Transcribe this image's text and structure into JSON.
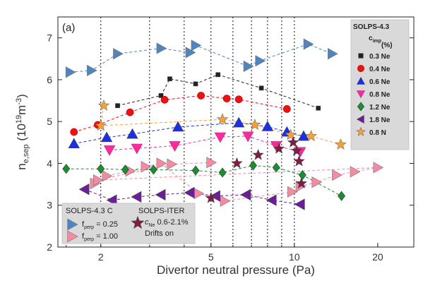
{
  "chart_data": {
    "type": "scatter",
    "panel_label": "(a)",
    "xlabel": "Divertor neutral pressure (Pa)",
    "ylabel_main": "n",
    "ylabel_sub": "e,sep",
    "ylabel_unit_pre": " (10",
    "ylabel_unit_exp": "19",
    "ylabel_unit_post": "m",
    "ylabel_unit_exp2": "-3",
    "ylabel_unit_end": ")",
    "x_scale": "log",
    "xlim": [
      1.4,
      27
    ],
    "ylim": [
      2,
      7.5
    ],
    "x_ticks": [
      2,
      5,
      10,
      20
    ],
    "x_tick_labels": [
      "2",
      "5",
      "10",
      "20"
    ],
    "y_ticks": [
      2,
      3,
      4,
      5,
      6,
      7
    ],
    "y_tick_labels": [
      "2",
      "3",
      "4",
      "5",
      "6",
      "7"
    ],
    "vertical_dotted_lines": [
      2,
      3,
      4,
      5,
      6,
      7,
      8,
      9,
      10
    ],
    "legend_top_right": {
      "title": "SOLPS-4.3",
      "subtitle_main": "c",
      "subtitle_sub": "imp",
      "subtitle_end": " (%)",
      "entries": [
        {
          "label": "0.3 Ne",
          "marker": "square",
          "color": "#222222"
        },
        {
          "label": "0.4 Ne",
          "marker": "circle",
          "color": "#ee1111"
        },
        {
          "label": "0.6 Ne",
          "marker": "triangle-up",
          "color": "#1a2fe6"
        },
        {
          "label": "0.8 Ne",
          "marker": "triangle-down",
          "color": "#ff2a9d"
        },
        {
          "label": "1.2 Ne",
          "marker": "diamond",
          "color": "#17902f"
        },
        {
          "label": "1.8 Ne",
          "marker": "triangle-left",
          "color": "#6a1f99"
        },
        {
          "label": "0.8 N",
          "marker": "star",
          "color": "#f7a036"
        }
      ]
    },
    "legend_bottom_left": {
      "title": "SOLPS-4.3 C",
      "entries": [
        {
          "main": "f",
          "sub": "perp",
          "rest": " = 0.25",
          "marker": "triangle-right",
          "color": "#4f84bf"
        },
        {
          "main": "f",
          "sub": "perp",
          "rest": " = 1.00",
          "marker": "triangle-right",
          "color": "#f58aa2"
        }
      ],
      "iter_title": "SOLPS-ITER",
      "iter_line2_main": "c",
      "iter_line2_sub": "Ne",
      "iter_line2_rest": " 0.6-2.1%",
      "iter_line3": "Drifts on",
      "iter_marker": "star",
      "iter_color": "#7b1f45"
    },
    "series": [
      {
        "id": "fperp025",
        "marker": "triangle-right",
        "color": "#4f84bf",
        "size": 9,
        "line": true,
        "points": [
          [
            1.55,
            6.18
          ],
          [
            1.85,
            6.22
          ],
          [
            2.3,
            6.62
          ],
          [
            3.3,
            6.75
          ],
          [
            4.2,
            6.65
          ],
          [
            4.4,
            6.82
          ],
          [
            6.8,
            6.32
          ],
          [
            7.5,
            6.45
          ],
          [
            11.2,
            6.85
          ],
          [
            13.7,
            6.62
          ]
        ]
      },
      {
        "id": "fperp100",
        "marker": "triangle-right",
        "color": "#f58aa2",
        "size": 9,
        "line": true,
        "points": [
          [
            1.9,
            3.52
          ],
          [
            2.1,
            3.7
          ],
          [
            2.55,
            3.82
          ],
          [
            2.9,
            3.92
          ],
          [
            3.3,
            4.0
          ],
          [
            4.5,
            3.28
          ],
          [
            5.6,
            3.1
          ],
          [
            9.8,
            3.32
          ],
          [
            10.5,
            3.45
          ],
          [
            12.0,
            3.55
          ],
          [
            14.2,
            3.72
          ],
          [
            16.5,
            3.8
          ],
          [
            20.0,
            3.9
          ],
          [
            1.95,
            3.6
          ],
          [
            3.6,
            3.98
          ],
          [
            5.0,
            4.02
          ]
        ]
      },
      {
        "id": "ne03",
        "marker": "square",
        "color": "#222222",
        "size": 6,
        "line": true,
        "points": [
          [
            2.3,
            5.38
          ],
          [
            3.3,
            5.62
          ],
          [
            3.55,
            6.02
          ],
          [
            4.4,
            5.9
          ],
          [
            5.3,
            6.12
          ],
          [
            7.6,
            5.8
          ],
          [
            12.2,
            5.32
          ]
        ]
      },
      {
        "id": "ne04",
        "marker": "circle",
        "color": "#ee1111",
        "size": 7,
        "line": true,
        "points": [
          [
            1.6,
            4.75
          ],
          [
            1.95,
            4.92
          ],
          [
            2.55,
            5.22
          ],
          [
            3.4,
            5.52
          ],
          [
            4.6,
            5.62
          ],
          [
            5.7,
            5.55
          ],
          [
            6.3,
            5.53
          ],
          [
            9.4,
            5.3
          ]
        ]
      },
      {
        "id": "ne06",
        "marker": "triangle-up",
        "color": "#1a2fe6",
        "size": 9,
        "line": true,
        "points": [
          [
            1.6,
            4.47
          ],
          [
            2.1,
            4.62
          ],
          [
            2.6,
            4.7
          ],
          [
            3.8,
            4.87
          ],
          [
            6.3,
            4.97
          ],
          [
            8.0,
            4.88
          ],
          [
            9.4,
            4.75
          ],
          [
            10.8,
            4.65
          ]
        ]
      },
      {
        "id": "ne08",
        "marker": "triangle-down",
        "color": "#ff2a9d",
        "size": 9,
        "line": true,
        "points": [
          [
            2.15,
            4.32
          ],
          [
            2.7,
            4.36
          ],
          [
            3.7,
            4.42
          ],
          [
            5.4,
            4.63
          ],
          [
            6.8,
            4.65
          ],
          [
            8.6,
            4.42
          ],
          [
            10.5,
            4.28
          ]
        ]
      },
      {
        "id": "ne12",
        "marker": "diamond",
        "color": "#17902f",
        "size": 7,
        "line": true,
        "points": [
          [
            1.5,
            3.87
          ],
          [
            2.0,
            3.87
          ],
          [
            2.45,
            3.85
          ],
          [
            3.1,
            3.85
          ],
          [
            4.4,
            3.83
          ],
          [
            5.5,
            3.78
          ],
          [
            7.1,
            3.95
          ],
          [
            8.6,
            3.9
          ],
          [
            10.7,
            3.72
          ],
          [
            14.8,
            3.22
          ]
        ]
      },
      {
        "id": "ne18",
        "marker": "triangle-left",
        "color": "#6a1f99",
        "size": 9,
        "line": true,
        "points": [
          [
            1.75,
            3.38
          ],
          [
            2.2,
            3.12
          ],
          [
            2.7,
            3.2
          ],
          [
            3.3,
            3.25
          ],
          [
            4.2,
            3.3
          ],
          [
            5.2,
            3.22
          ],
          [
            6.7,
            3.25
          ],
          [
            8.3,
            3.12
          ],
          [
            10.5,
            3.02
          ]
        ]
      },
      {
        "id": "n08",
        "marker": "star",
        "color": "#f7a036",
        "size": 8,
        "line": true,
        "points": [
          [
            2.05,
            5.38
          ],
          [
            2.0,
            4.9
          ],
          [
            5.5,
            5.05
          ],
          [
            7.2,
            4.92
          ],
          [
            9.7,
            4.68
          ],
          [
            11.5,
            4.65
          ],
          [
            14.7,
            4.45
          ]
        ]
      },
      {
        "id": "iter",
        "marker": "star",
        "color": "#7b1f45",
        "size": 8,
        "line": false,
        "points": [
          [
            5.0,
            3.17
          ],
          [
            6.2,
            4.0
          ],
          [
            7.4,
            4.2
          ],
          [
            8.8,
            4.35
          ],
          [
            9.9,
            4.5
          ],
          [
            10.2,
            4.3
          ],
          [
            10.4,
            4.05
          ],
          [
            10.6,
            3.52
          ]
        ]
      }
    ]
  }
}
